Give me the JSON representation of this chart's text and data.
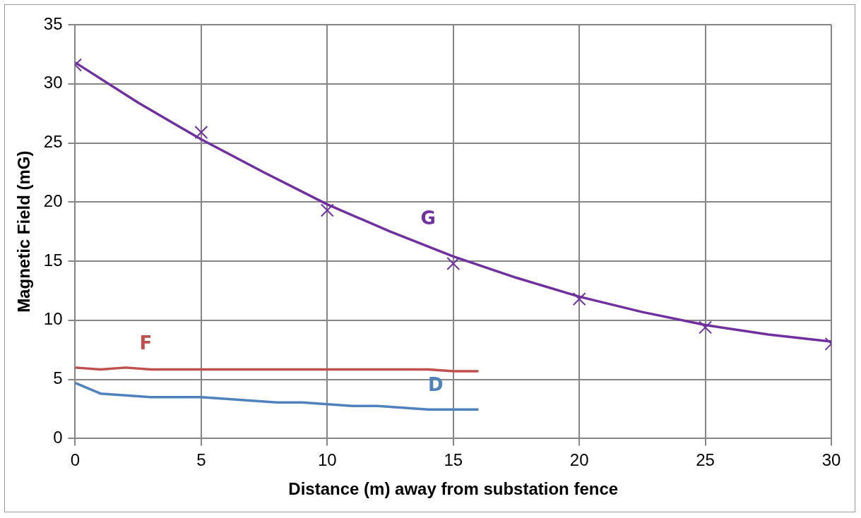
{
  "chart_data": {
    "type": "line",
    "xlabel": "Distance (m) away from substation fence",
    "ylabel": "Magnetic Field (mG)",
    "xlim": [
      0,
      30
    ],
    "xticks": [
      0,
      5,
      10,
      15,
      20,
      25,
      30
    ],
    "ylim": [
      0,
      35
    ],
    "yticks": [
      0,
      5,
      10,
      15,
      20,
      25,
      30,
      35
    ],
    "grid": true,
    "legend": false,
    "series": [
      {
        "name": "G",
        "type": "scatter",
        "marker": "cross",
        "color": "#7030a0",
        "x": [
          0,
          5,
          10,
          15,
          20,
          25,
          30
        ],
        "values": [
          31.6,
          25.9,
          19.3,
          14.8,
          11.8,
          9.4,
          8.0
        ]
      },
      {
        "marker": "none",
        "color": "#7030a0",
        "x": [
          0,
          2.5,
          5,
          7.5,
          10,
          12.5,
          15,
          17.5,
          20,
          22.5,
          25,
          27.5,
          30
        ],
        "values": [
          31.8,
          28.4,
          25.3,
          22.5,
          19.8,
          17.5,
          15.4,
          13.6,
          12.0,
          10.7,
          9.6,
          8.8,
          8.2
        ]
      },
      {
        "name": "F",
        "marker": "none",
        "color": "#c0504d",
        "x": [
          0,
          1,
          2,
          3,
          4,
          5,
          6,
          7,
          8,
          9,
          10,
          11,
          12,
          13,
          14,
          15,
          16
        ],
        "values": [
          6.0,
          5.85,
          6.0,
          5.85,
          5.85,
          5.85,
          5.85,
          5.85,
          5.85,
          5.85,
          5.85,
          5.85,
          5.85,
          5.85,
          5.85,
          5.7,
          5.7
        ]
      },
      {
        "name": "D",
        "marker": "none",
        "color": "#4f81bd",
        "x": [
          0,
          1,
          2,
          3,
          4,
          5,
          6,
          7,
          8,
          9,
          10,
          11,
          12,
          13,
          14,
          15,
          16
        ],
        "values": [
          4.7,
          3.8,
          3.65,
          3.5,
          3.5,
          3.5,
          3.35,
          3.2,
          3.05,
          3.05,
          2.9,
          2.75,
          2.75,
          2.6,
          2.45,
          2.45,
          2.45
        ]
      }
    ]
  }
}
